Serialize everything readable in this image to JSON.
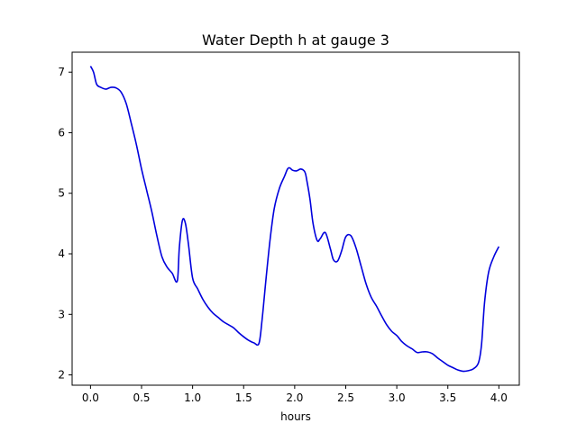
{
  "chart_data": {
    "type": "line",
    "title": "Water Depth h at gauge 3",
    "xlabel": "hours",
    "ylabel": "",
    "xlim": [
      -0.18,
      4.2
    ],
    "ylim": [
      1.83,
      7.33
    ],
    "xticks": [
      0.0,
      0.5,
      1.0,
      1.5,
      2.0,
      2.5,
      3.0,
      3.5,
      4.0
    ],
    "xtick_labels": [
      "0.0",
      "0.5",
      "1.0",
      "1.5",
      "2.0",
      "2.5",
      "3.0",
      "3.5",
      "4.0"
    ],
    "yticks": [
      2,
      3,
      4,
      5,
      6,
      7
    ],
    "ytick_labels": [
      "2",
      "3",
      "4",
      "5",
      "6",
      "7"
    ],
    "grid": false,
    "series": [
      {
        "color": "#0000dd",
        "x": [
          0.0,
          0.03,
          0.06,
          0.1,
          0.15,
          0.2,
          0.25,
          0.3,
          0.35,
          0.4,
          0.45,
          0.5,
          0.55,
          0.6,
          0.65,
          0.7,
          0.75,
          0.8,
          0.85,
          0.87,
          0.9,
          0.93,
          0.96,
          1.0,
          1.05,
          1.1,
          1.15,
          1.2,
          1.25,
          1.3,
          1.35,
          1.4,
          1.45,
          1.5,
          1.55,
          1.6,
          1.65,
          1.68,
          1.72,
          1.76,
          1.8,
          1.85,
          1.9,
          1.93,
          1.95,
          1.98,
          2.02,
          2.06,
          2.1,
          2.12,
          2.15,
          2.18,
          2.22,
          2.25,
          2.3,
          2.35,
          2.38,
          2.42,
          2.46,
          2.5,
          2.55,
          2.6,
          2.65,
          2.7,
          2.75,
          2.8,
          2.85,
          2.9,
          2.95,
          3.0,
          3.05,
          3.1,
          3.15,
          3.2,
          3.25,
          3.3,
          3.35,
          3.4,
          3.45,
          3.5,
          3.55,
          3.6,
          3.65,
          3.7,
          3.75,
          3.8,
          3.83,
          3.86,
          3.9,
          3.95,
          4.0
        ],
        "y": [
          7.1,
          7.0,
          6.8,
          6.75,
          6.72,
          6.75,
          6.74,
          6.67,
          6.48,
          6.15,
          5.8,
          5.4,
          5.05,
          4.7,
          4.3,
          3.95,
          3.78,
          3.68,
          3.55,
          4.1,
          4.55,
          4.5,
          4.15,
          3.6,
          3.42,
          3.25,
          3.12,
          3.02,
          2.95,
          2.88,
          2.83,
          2.78,
          2.7,
          2.63,
          2.57,
          2.53,
          2.52,
          2.9,
          3.6,
          4.25,
          4.75,
          5.08,
          5.28,
          5.4,
          5.42,
          5.38,
          5.37,
          5.4,
          5.35,
          5.2,
          4.9,
          4.5,
          4.22,
          4.25,
          4.35,
          4.08,
          3.9,
          3.88,
          4.05,
          4.28,
          4.3,
          4.1,
          3.8,
          3.5,
          3.28,
          3.14,
          2.98,
          2.83,
          2.72,
          2.65,
          2.55,
          2.48,
          2.43,
          2.37,
          2.38,
          2.38,
          2.35,
          2.28,
          2.22,
          2.16,
          2.12,
          2.08,
          2.06,
          2.07,
          2.1,
          2.2,
          2.5,
          3.2,
          3.7,
          3.95,
          4.12
        ]
      }
    ]
  }
}
